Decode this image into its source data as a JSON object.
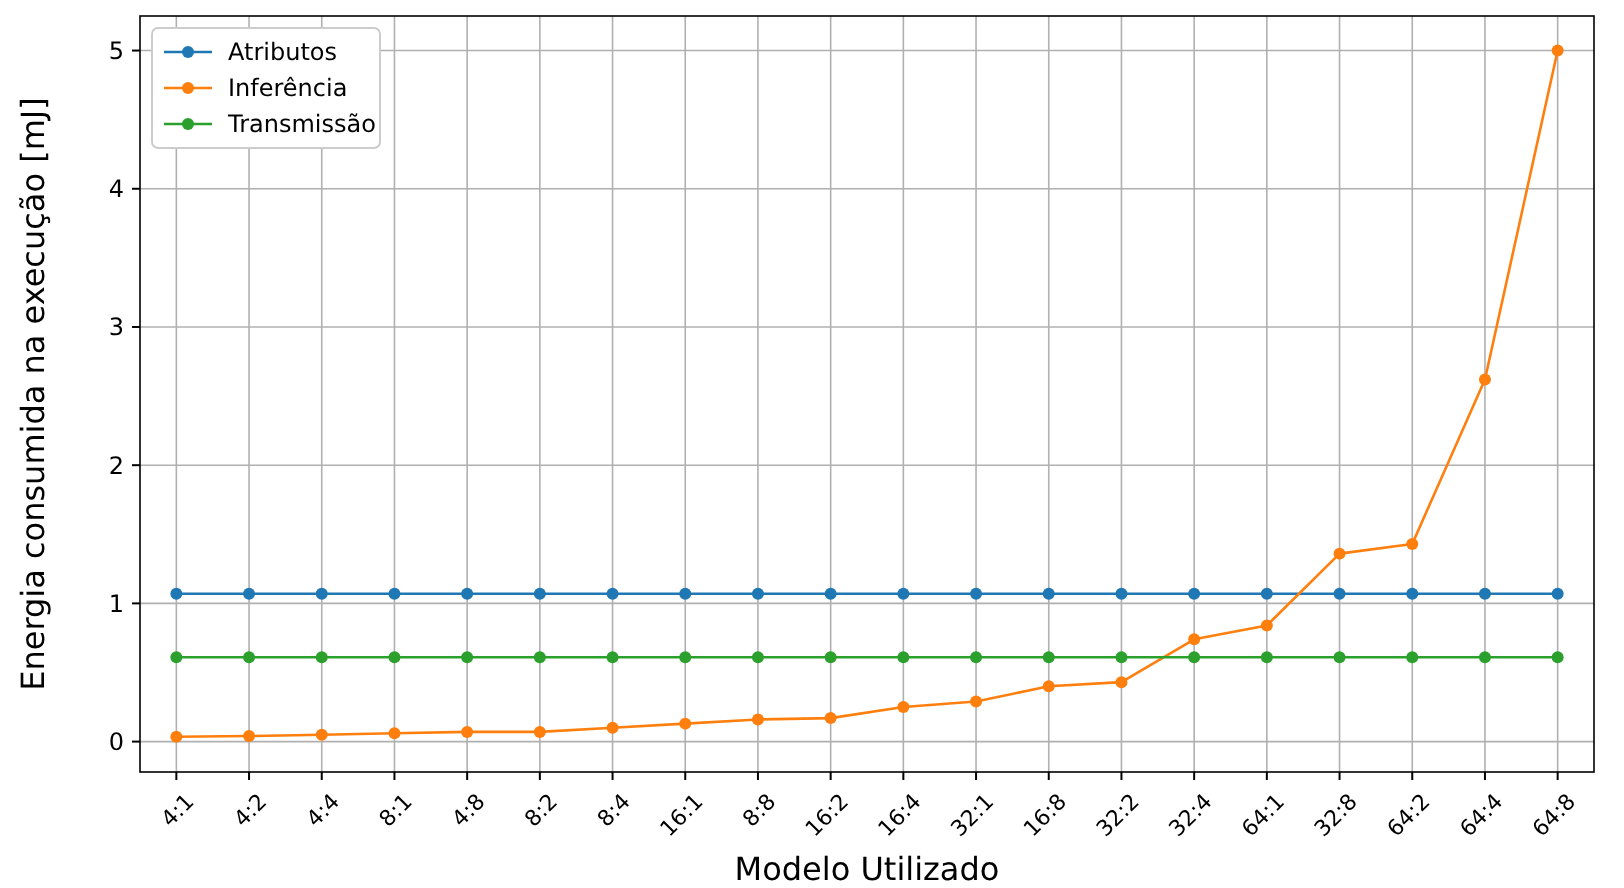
{
  "chart_data": {
    "type": "line",
    "xlabel": "Modelo Utilizado",
    "ylabel": "Energia consumida na execução [mJ]",
    "categories": [
      "4:1",
      "4:2",
      "4:4",
      "8:1",
      "4:8",
      "8:2",
      "8:4",
      "16:1",
      "8:8",
      "16:2",
      "16:4",
      "32:1",
      "16:8",
      "32:2",
      "32:4",
      "64:1",
      "32:8",
      "64:2",
      "64:4",
      "64:8"
    ],
    "series": [
      {
        "name": "Atributos",
        "color": "#1f77b4",
        "values": [
          1.07,
          1.07,
          1.07,
          1.07,
          1.07,
          1.07,
          1.07,
          1.07,
          1.07,
          1.07,
          1.07,
          1.07,
          1.07,
          1.07,
          1.07,
          1.07,
          1.07,
          1.07,
          1.07,
          1.07
        ]
      },
      {
        "name": "Inferência",
        "color": "#ff7f0e",
        "values": [
          0.035,
          0.04,
          0.05,
          0.06,
          0.07,
          0.07,
          0.1,
          0.13,
          0.16,
          0.17,
          0.25,
          0.29,
          0.4,
          0.43,
          0.74,
          0.84,
          1.36,
          1.43,
          2.62,
          5.0
        ]
      },
      {
        "name": "Transmissão",
        "color": "#2ca02c",
        "values": [
          0.61,
          0.61,
          0.61,
          0.61,
          0.61,
          0.61,
          0.61,
          0.61,
          0.61,
          0.61,
          0.61,
          0.61,
          0.61,
          0.61,
          0.61,
          0.61,
          0.61,
          0.61,
          0.61,
          0.61
        ]
      }
    ],
    "ylim": [
      -0.22,
      5.25
    ],
    "yticks": [
      0,
      1,
      2,
      3,
      4,
      5
    ],
    "grid": true,
    "legend": "top left",
    "marker": "circle",
    "line_style": "solid"
  }
}
